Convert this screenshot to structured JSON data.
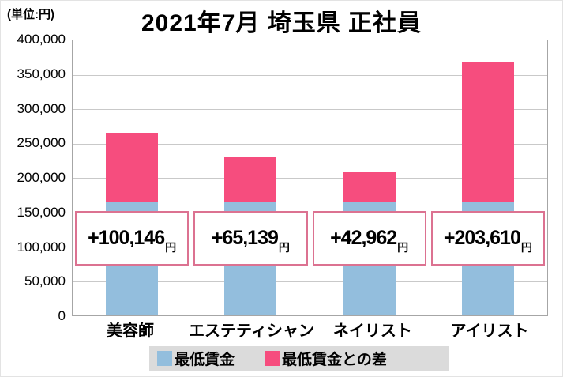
{
  "header": {
    "unit_label": "(単位:円)",
    "title": "2021年7月 埼玉県 正社員"
  },
  "chart_data": {
    "type": "bar",
    "stacked": true,
    "title": "2021年7月 埼玉県 正社員",
    "unit": "円",
    "categories": [
      "美容師",
      "エステティシャン",
      "ネイリスト",
      "アイリスト"
    ],
    "series": [
      {
        "name": "最低賃金",
        "color": "#93bedd",
        "values_estimated": [
          165000,
          165000,
          165000,
          165000
        ]
      },
      {
        "name": "最低賃金との差",
        "color": "#f64d7e",
        "values": [
          100146,
          65139,
          42962,
          203610
        ]
      }
    ],
    "annotations": [
      "+100,146",
      "+65,139",
      "+42,962",
      "+203,610"
    ],
    "annotation_suffix": "円",
    "ylim": [
      0,
      400000
    ],
    "y_tick_step": 50000,
    "y_ticks": [
      "400,000",
      "350,000",
      "300,000",
      "250,000",
      "200,000",
      "150,000",
      "100,000",
      "50,000",
      "0"
    ],
    "grid": true,
    "legend_position": "bottom"
  },
  "legend": {
    "items": [
      {
        "label": "最低賃金",
        "color": "#93bedd"
      },
      {
        "label": "最低賃金との差",
        "color": "#f64d7e"
      }
    ]
  },
  "colors": {
    "bar_blue": "#93bedd",
    "bar_pink": "#f64d7e",
    "annotation_border": "#dc7291",
    "grid": "#c9c9c9",
    "plot_border": "#a6a6a6",
    "legend_bg": "#dbdbdb",
    "text": "#000000"
  }
}
